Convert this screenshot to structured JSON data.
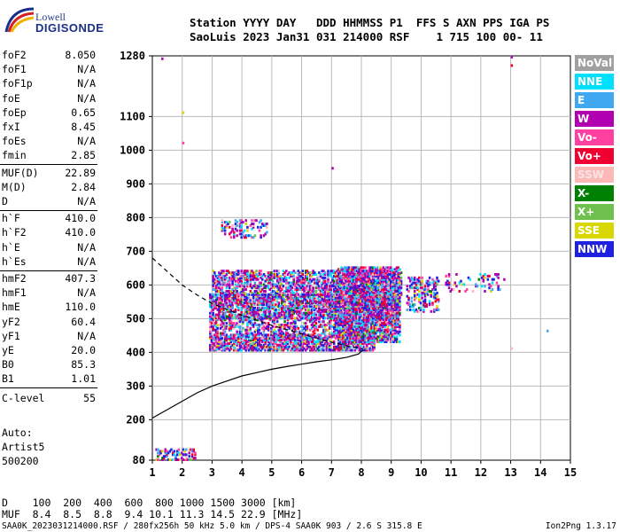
{
  "logo": {
    "line1": "Lowell",
    "line2": "DIGISONDE",
    "colors": [
      "#1a2f8c",
      "#d42020",
      "#f0b000"
    ]
  },
  "header": {
    "row1": "Station YYYY DAY   DDD HHMMSS P1  FFS S AXN PPS IGA PS",
    "row2": "SaoLuis 2023 Jan31 031 214000 RSF    1 715 100 00- 11"
  },
  "params": [
    {
      "name": "foF2",
      "value": "8.050"
    },
    {
      "name": "foF1",
      "value": "N/A"
    },
    {
      "name": "foF1p",
      "value": "N/A"
    },
    {
      "name": "foE",
      "value": "N/A"
    },
    {
      "name": "foEp",
      "value": "0.65"
    },
    {
      "name": "fxI",
      "value": "8.45"
    },
    {
      "name": "foEs",
      "value": "N/A"
    },
    {
      "name": "fmin",
      "value": "2.85"
    },
    {
      "name": "MUF(D)",
      "value": "22.89"
    },
    {
      "name": "M(D)",
      "value": "2.84"
    },
    {
      "name": "D",
      "value": "N/A"
    },
    {
      "name": "h`F",
      "value": "410.0"
    },
    {
      "name": "h`F2",
      "value": "410.0"
    },
    {
      "name": "h`E",
      "value": "N/A"
    },
    {
      "name": "h`Es",
      "value": "N/A"
    },
    {
      "name": "hmF2",
      "value": "407.3"
    },
    {
      "name": "hmF1",
      "value": "N/A"
    },
    {
      "name": "hmE",
      "value": "110.0"
    },
    {
      "name": "yF2",
      "value": "60.4"
    },
    {
      "name": "yF1",
      "value": "N/A"
    },
    {
      "name": "yE",
      "value": "20.0"
    },
    {
      "name": "B0",
      "value": "85.3"
    },
    {
      "name": "B1",
      "value": "1.01"
    },
    {
      "name": "C-level",
      "value": "55"
    }
  ],
  "auto": {
    "line1": "Auto:",
    "line2": "Artist5",
    "line3": "500200"
  },
  "muf_table": {
    "d_row": "D    100  200  400  600  800 1000 1500 3000 [km]",
    "muf_row": "MUF  8.4  8.5  8.8  9.4 10.1 11.3 14.5 22.9 [MHz]"
  },
  "footer": {
    "left": "SAA0K_2023031214000.RSF / 280fx256h 50 kHz 5.0 km / DPS-4 SAA0K 903 / 2.6 S 315.8 E",
    "right": "Ion2Png 1.3.17"
  },
  "legend": [
    {
      "label": "NoVal",
      "color": "#a0a0a0"
    },
    {
      "label": "NNE",
      "color": "#00e0ff"
    },
    {
      "label": "E",
      "color": "#40a8f0"
    },
    {
      "label": "W",
      "color": "#b000b0"
    },
    {
      "label": "Vo-",
      "color": "#ff40a0"
    },
    {
      "label": "Vo+",
      "color": "#f00030"
    },
    {
      "label": "SSW",
      "color": "#ffb8b8"
    },
    {
      "label": "X-",
      "color": "#008000"
    },
    {
      "label": "X+",
      "color": "#70c050"
    },
    {
      "label": "SSE",
      "color": "#d8d800"
    },
    {
      "label": "NNW",
      "color": "#2020e0"
    }
  ],
  "chart_data": {
    "type": "scatter",
    "title": "",
    "xlabel": "",
    "ylabel": "",
    "xlim": [
      1,
      15
    ],
    "ylim": [
      80,
      1280
    ],
    "x_ticks": [
      "1",
      "2",
      "3",
      "4",
      "5",
      "6",
      "7",
      "8",
      "9",
      "10",
      "11",
      "12",
      "13",
      "14",
      "15"
    ],
    "y_ticks": [
      "80",
      "200",
      "300",
      "400",
      "500",
      "600",
      "700",
      "800",
      "900",
      "1000",
      "1100",
      "1280"
    ],
    "y_tick_values": [
      80,
      200,
      300,
      400,
      500,
      600,
      700,
      800,
      900,
      1000,
      1100,
      1280
    ],
    "grid": true,
    "profile_solid": [
      [
        1.0,
        205
      ],
      [
        1.5,
        230
      ],
      [
        2.0,
        255
      ],
      [
        2.5,
        280
      ],
      [
        3.0,
        300
      ],
      [
        3.5,
        315
      ],
      [
        4.0,
        330
      ],
      [
        4.5,
        340
      ],
      [
        5.0,
        350
      ],
      [
        5.5,
        358
      ],
      [
        6.0,
        365
      ],
      [
        6.5,
        372
      ],
      [
        7.0,
        378
      ],
      [
        7.5,
        385
      ],
      [
        7.9,
        395
      ],
      [
        8.05,
        407
      ]
    ],
    "profile_dashed": [
      [
        1.0,
        680
      ],
      [
        1.5,
        640
      ],
      [
        2.0,
        600
      ],
      [
        2.5,
        570
      ],
      [
        3.0,
        545
      ],
      [
        4.0,
        510
      ],
      [
        5.0,
        480
      ],
      [
        6.0,
        455
      ],
      [
        7.0,
        430
      ],
      [
        7.5,
        420
      ],
      [
        8.05,
        410
      ]
    ],
    "echo_bands": [
      {
        "x": [
          2.9,
          8.4
        ],
        "y": [
          405,
          450
        ],
        "density": 0.7
      },
      {
        "x": [
          2.9,
          8.6
        ],
        "y": [
          455,
          500
        ],
        "density": 0.4
      },
      {
        "x": [
          2.9,
          9.2
        ],
        "y": [
          500,
          570
        ],
        "density": 0.65
      },
      {
        "x": [
          3.0,
          9.3
        ],
        "y": [
          570,
          640
        ],
        "density": 0.5
      },
      {
        "x": [
          7.2,
          9.3
        ],
        "y": [
          430,
          650
        ],
        "density": 0.7
      },
      {
        "x": [
          9.5,
          10.6
        ],
        "y": [
          520,
          620
        ],
        "density": 0.35
      },
      {
        "x": [
          10.8,
          12.8
        ],
        "y": [
          580,
          630
        ],
        "density": 0.12
      },
      {
        "x": [
          1.1,
          2.4
        ],
        "y": [
          80,
          110
        ],
        "density": 0.35
      },
      {
        "x": [
          3.3,
          4.8
        ],
        "y": [
          740,
          790
        ],
        "density": 0.25
      }
    ],
    "isolated_points": [
      [
        1.3,
        1270
      ],
      [
        2.0,
        1110
      ],
      [
        2.0,
        1020
      ],
      [
        7.0,
        945
      ],
      [
        13.0,
        1275
      ],
      [
        13.0,
        1250
      ],
      [
        13.0,
        410
      ],
      [
        14.2,
        462
      ]
    ]
  }
}
